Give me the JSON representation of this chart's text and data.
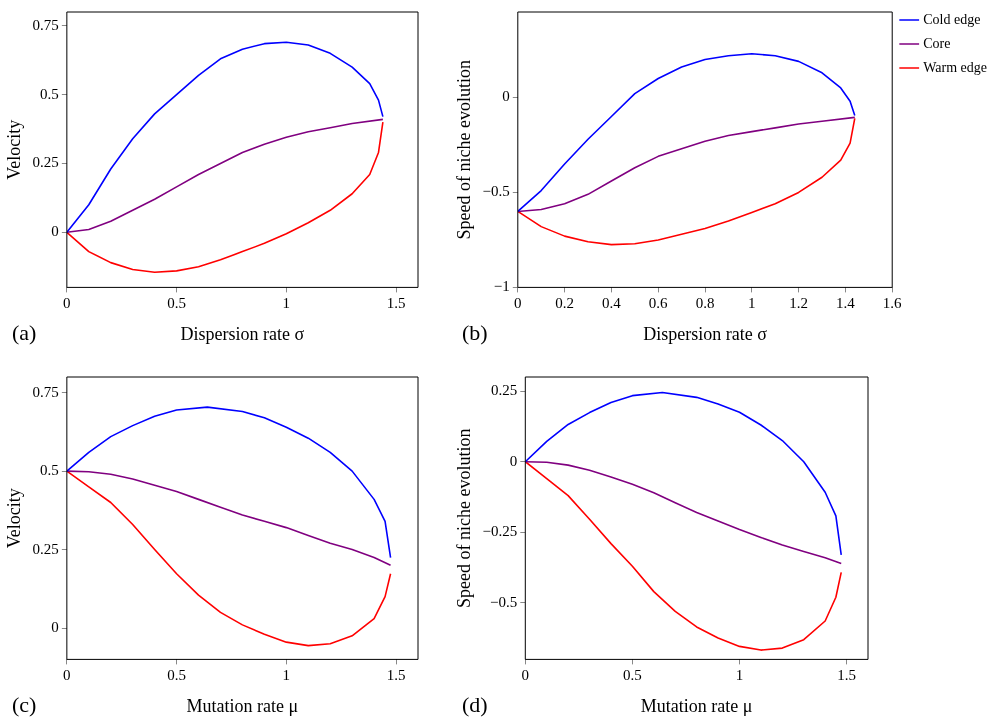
{
  "chart_data": [
    {
      "type": "line",
      "xlabel": "Dispersion rate σ",
      "ylabel": "Velocity",
      "xlim": [
        0,
        1.6
      ],
      "ylim": [
        -0.2,
        0.8
      ],
      "xticks": [
        0,
        0.5,
        1,
        1.5
      ],
      "yticks": [
        0,
        0.25,
        0.5,
        0.75
      ],
      "grid": false,
      "legend": false,
      "annotations": [
        "(a)"
      ],
      "series": [
        {
          "color": "#0000ff",
          "x": [
            0,
            0.1,
            0.2,
            0.3,
            0.4,
            0.5,
            0.6,
            0.7,
            0.8,
            0.9,
            1.0,
            1.1,
            1.2,
            1.3,
            1.38,
            1.42,
            1.44
          ],
          "values": [
            0,
            0.1,
            0.23,
            0.34,
            0.43,
            0.5,
            0.57,
            0.63,
            0.665,
            0.685,
            0.69,
            0.68,
            0.65,
            0.6,
            0.54,
            0.48,
            0.42
          ]
        },
        {
          "color": "#800080",
          "x": [
            0,
            0.1,
            0.2,
            0.3,
            0.4,
            0.5,
            0.6,
            0.7,
            0.8,
            0.9,
            1.0,
            1.1,
            1.2,
            1.3,
            1.44
          ],
          "values": [
            0,
            0.01,
            0.04,
            0.08,
            0.12,
            0.165,
            0.21,
            0.25,
            0.29,
            0.32,
            0.345,
            0.365,
            0.38,
            0.395,
            0.41
          ]
        },
        {
          "color": "#ff0000",
          "x": [
            0,
            0.1,
            0.2,
            0.3,
            0.4,
            0.5,
            0.6,
            0.7,
            0.8,
            0.9,
            1.0,
            1.1,
            1.2,
            1.3,
            1.38,
            1.42,
            1.44
          ],
          "values": [
            0,
            -0.07,
            -0.11,
            -0.135,
            -0.145,
            -0.14,
            -0.125,
            -0.1,
            -0.07,
            -0.04,
            -0.005,
            0.035,
            0.08,
            0.14,
            0.21,
            0.29,
            0.4
          ]
        }
      ]
    },
    {
      "type": "line",
      "xlabel": "Dispersion rate σ",
      "ylabel": "Speed of niche evolution",
      "xlim": [
        0,
        1.6
      ],
      "ylim": [
        -1,
        0.45
      ],
      "xticks": [
        0,
        0.2,
        0.4,
        0.6,
        0.8,
        1,
        1.2,
        1.4,
        1.6
      ],
      "yticks": [
        -1,
        -0.5,
        0
      ],
      "grid": false,
      "legend": "top right",
      "annotations": [
        "(b)"
      ],
      "series": [
        {
          "name": "Cold edge",
          "color": "#0000ff",
          "x": [
            0,
            0.1,
            0.2,
            0.3,
            0.4,
            0.5,
            0.6,
            0.7,
            0.8,
            0.9,
            1.0,
            1.1,
            1.2,
            1.3,
            1.38,
            1.42,
            1.44
          ],
          "values": [
            -0.6,
            -0.49,
            -0.35,
            -0.22,
            -0.1,
            0.02,
            0.1,
            0.16,
            0.2,
            0.22,
            0.23,
            0.22,
            0.19,
            0.13,
            0.05,
            -0.02,
            -0.095
          ]
        },
        {
          "name": "Core",
          "color": "#800080",
          "x": [
            0,
            0.1,
            0.2,
            0.3,
            0.4,
            0.5,
            0.6,
            0.7,
            0.8,
            0.9,
            1.0,
            1.1,
            1.2,
            1.3,
            1.44
          ],
          "values": [
            -0.6,
            -0.59,
            -0.56,
            -0.51,
            -0.44,
            -0.37,
            -0.31,
            -0.27,
            -0.23,
            -0.2,
            -0.18,
            -0.16,
            -0.14,
            -0.125,
            -0.105
          ]
        },
        {
          "name": "Warm edge",
          "color": "#ff0000",
          "x": [
            0,
            0.1,
            0.2,
            0.3,
            0.4,
            0.5,
            0.6,
            0.7,
            0.8,
            0.9,
            1.0,
            1.1,
            1.2,
            1.3,
            1.38,
            1.42,
            1.44
          ],
          "values": [
            -0.6,
            -0.68,
            -0.73,
            -0.76,
            -0.775,
            -0.77,
            -0.75,
            -0.72,
            -0.69,
            -0.65,
            -0.605,
            -0.56,
            -0.5,
            -0.42,
            -0.33,
            -0.24,
            -0.11
          ]
        }
      ]
    },
    {
      "type": "line",
      "xlabel": "Mutation rate μ",
      "ylabel": "Velocity",
      "xlim": [
        0,
        1.6
      ],
      "ylim": [
        -0.1,
        0.8
      ],
      "xticks": [
        0,
        0.5,
        1,
        1.5
      ],
      "yticks": [
        0,
        0.25,
        0.5,
        0.75
      ],
      "grid": false,
      "legend": false,
      "annotations": [
        "(c)"
      ],
      "series": [
        {
          "color": "#0000ff",
          "x": [
            0,
            0.1,
            0.2,
            0.3,
            0.4,
            0.5,
            0.64,
            0.8,
            0.9,
            1.0,
            1.1,
            1.2,
            1.3,
            1.4,
            1.45,
            1.475
          ],
          "values": [
            0.5,
            0.56,
            0.61,
            0.645,
            0.675,
            0.695,
            0.704,
            0.69,
            0.67,
            0.64,
            0.605,
            0.56,
            0.5,
            0.41,
            0.34,
            0.224
          ]
        },
        {
          "color": "#800080",
          "x": [
            0,
            0.1,
            0.2,
            0.3,
            0.4,
            0.5,
            0.6,
            0.7,
            0.8,
            0.9,
            1.0,
            1.1,
            1.2,
            1.3,
            1.4,
            1.475
          ],
          "values": [
            0.5,
            0.498,
            0.49,
            0.475,
            0.455,
            0.435,
            0.41,
            0.385,
            0.36,
            0.34,
            0.32,
            0.295,
            0.27,
            0.25,
            0.225,
            0.2
          ]
        },
        {
          "color": "#ff0000",
          "x": [
            0,
            0.1,
            0.2,
            0.3,
            0.4,
            0.5,
            0.6,
            0.7,
            0.8,
            0.9,
            1.0,
            1.1,
            1.2,
            1.3,
            1.4,
            1.45,
            1.475
          ],
          "values": [
            0.5,
            0.45,
            0.4,
            0.33,
            0.25,
            0.173,
            0.105,
            0.05,
            0.01,
            -0.02,
            -0.045,
            -0.056,
            -0.05,
            -0.025,
            0.03,
            0.1,
            0.173
          ]
        }
      ]
    },
    {
      "type": "line",
      "xlabel": "Mutation rate μ",
      "ylabel": "Speed of niche evolution",
      "xlim": [
        0,
        1.6
      ],
      "ylim": [
        -0.7,
        0.3
      ],
      "xticks": [
        0,
        0.5,
        1,
        1.5
      ],
      "yticks": [
        -0.5,
        -0.25,
        0,
        0.25
      ],
      "grid": false,
      "legend": false,
      "annotations": [
        "(d)"
      ],
      "series": [
        {
          "color": "#0000ff",
          "x": [
            0,
            0.1,
            0.2,
            0.3,
            0.4,
            0.5,
            0.64,
            0.8,
            0.9,
            1.0,
            1.1,
            1.2,
            1.3,
            1.4,
            1.45,
            1.475
          ],
          "values": [
            0,
            0.072,
            0.132,
            0.174,
            0.21,
            0.234,
            0.245,
            0.228,
            0.204,
            0.175,
            0.13,
            0.075,
            0,
            -0.108,
            -0.192,
            -0.33
          ]
        },
        {
          "color": "#800080",
          "x": [
            0,
            0.1,
            0.2,
            0.3,
            0.4,
            0.5,
            0.6,
            0.7,
            0.8,
            0.9,
            1.0,
            1.1,
            1.2,
            1.3,
            1.4,
            1.475
          ],
          "values": [
            0,
            -0.002,
            -0.012,
            -0.03,
            -0.054,
            -0.08,
            -0.11,
            -0.145,
            -0.18,
            -0.21,
            -0.24,
            -0.268,
            -0.295,
            -0.318,
            -0.34,
            -0.36
          ]
        },
        {
          "color": "#ff0000",
          "x": [
            0,
            0.1,
            0.2,
            0.3,
            0.4,
            0.5,
            0.6,
            0.7,
            0.8,
            0.9,
            1.0,
            1.1,
            1.2,
            1.3,
            1.4,
            1.45,
            1.475
          ],
          "values": [
            0,
            -0.06,
            -0.12,
            -0.204,
            -0.29,
            -0.37,
            -0.46,
            -0.53,
            -0.585,
            -0.624,
            -0.654,
            -0.667,
            -0.66,
            -0.63,
            -0.564,
            -0.48,
            -0.392
          ]
        }
      ]
    }
  ]
}
